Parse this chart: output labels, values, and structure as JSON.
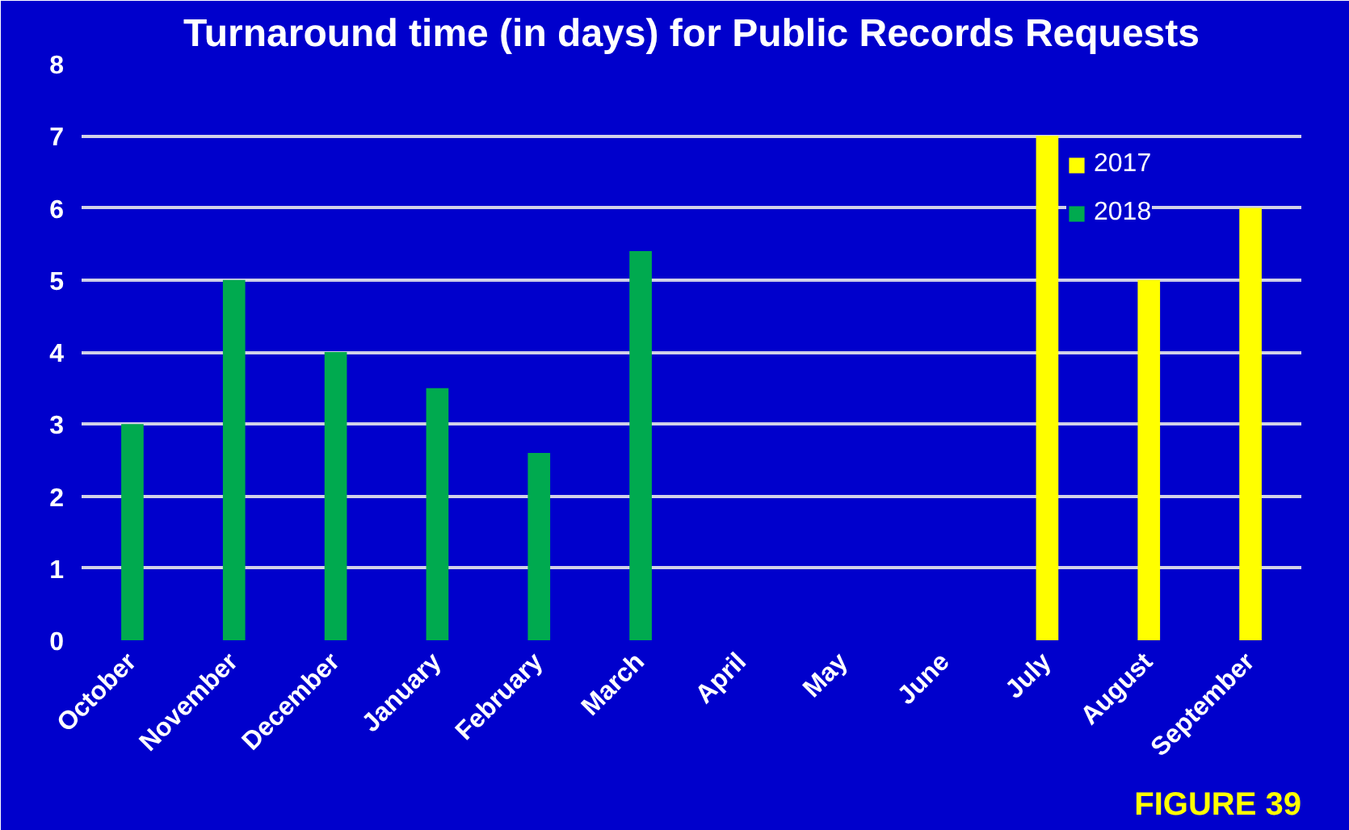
{
  "chart_data": {
    "type": "bar",
    "title": "Turnaround time (in days) for Public Records Requests",
    "categories": [
      "October",
      "November",
      "December",
      "January",
      "February",
      "March",
      "April",
      "May",
      "June",
      "July",
      "August",
      "September"
    ],
    "series": [
      {
        "name": "2017",
        "color": "#ffff00",
        "values": [
          null,
          null,
          null,
          null,
          null,
          null,
          null,
          null,
          null,
          7,
          5,
          6
        ]
      },
      {
        "name": "2018",
        "color": "#00aa4f",
        "values": [
          3,
          5,
          4,
          3.5,
          2.6,
          5.4,
          null,
          null,
          null,
          null,
          null,
          null
        ]
      }
    ],
    "ylim": [
      0,
      8
    ],
    "yticks": [
      0,
      1,
      2,
      3,
      4,
      5,
      6,
      7,
      8
    ],
    "grid": "y",
    "legend": "top right",
    "annotations": [
      "FIGURE 39"
    ]
  }
}
